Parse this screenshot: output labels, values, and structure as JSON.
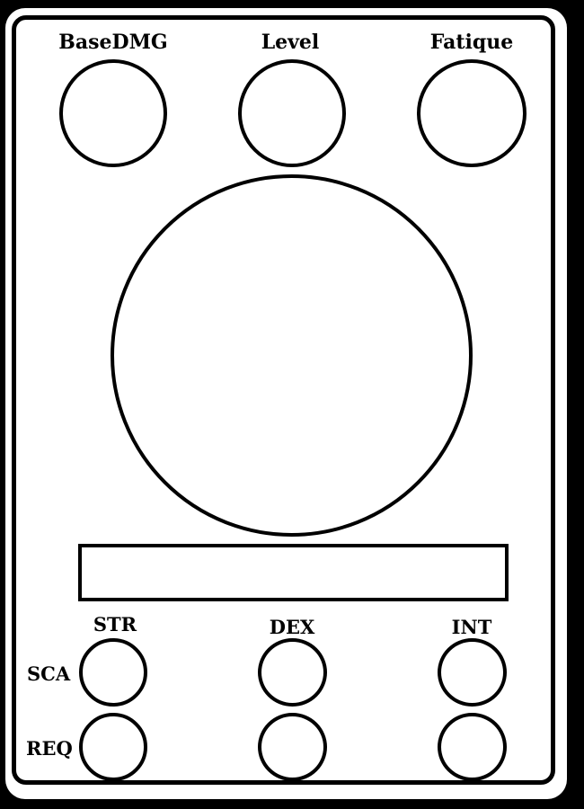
{
  "top_stats": [
    {
      "label": "BaseDMG"
    },
    {
      "label": "Level"
    },
    {
      "label": "Fatique"
    }
  ],
  "attributes": [
    {
      "label": "STR"
    },
    {
      "label": "DEX"
    },
    {
      "label": "INT"
    }
  ],
  "rows": [
    {
      "label": "SCA"
    },
    {
      "label": "REQ"
    }
  ],
  "colors": {
    "background": "#000000",
    "card": "#ffffff",
    "ink": "#000000"
  }
}
